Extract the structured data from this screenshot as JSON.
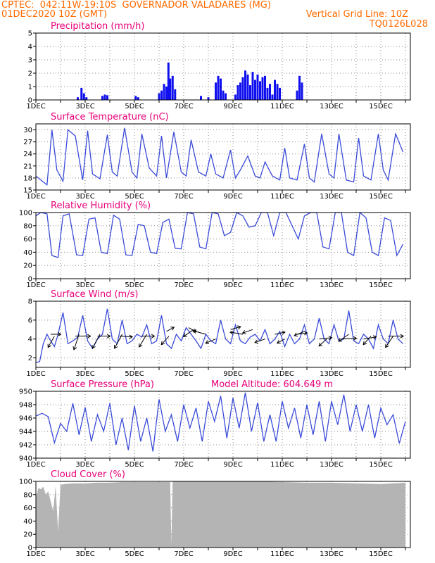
{
  "header": {
    "line1_left": "CPTEC:  042:11W-19:10S  GOVERNADOR VALADARES (MG)",
    "line2_left": "01DEC2020 10Z (GMT)",
    "line2_right": "Vertical Grid Line: 10Z",
    "line3_right": "TQ0126L028"
  },
  "colors": {
    "header": "#ff6a00",
    "panel_title": "#e8007a",
    "precip_bars": "#1010ee",
    "line": "#3a4bd8",
    "cloud_fill": "#b4b4b4",
    "arrows": "#000000"
  },
  "chart_data": [
    {
      "id": "precip",
      "type": "bar",
      "title": "Precipitation (mm/h)",
      "ylim": [
        0,
        5
      ],
      "yticks": [
        0,
        1,
        2,
        3,
        4,
        5
      ],
      "xlabels": [
        "1DEC",
        "3DEC",
        "5DEC",
        "7DEC",
        "9DEC",
        "11DEC",
        "13DEC",
        "15DEC"
      ],
      "x": [
        2.7,
        2.85,
        2.95,
        3.05,
        3.7,
        3.8,
        3.9,
        5.05,
        5.15,
        6.0,
        6.1,
        6.2,
        6.3,
        6.38,
        6.45,
        6.55,
        6.65,
        7.7,
        8.0,
        8.3,
        8.4,
        8.5,
        8.6,
        8.7,
        9.1,
        9.2,
        9.3,
        9.4,
        9.5,
        9.6,
        9.7,
        9.8,
        9.9,
        10.0,
        10.1,
        10.2,
        10.3,
        10.4,
        10.5,
        10.6,
        10.7,
        10.8,
        10.9,
        11.6,
        11.7,
        11.8
      ],
      "values": [
        0.2,
        0.9,
        0.5,
        0.2,
        0.3,
        0.4,
        0.35,
        0.3,
        0.2,
        0.5,
        0.7,
        1.2,
        1.0,
        2.8,
        1.6,
        1.8,
        0.8,
        0.3,
        0.2,
        1.3,
        1.8,
        1.6,
        0.7,
        0.5,
        0.4,
        1.1,
        1.3,
        1.7,
        2.2,
        1.9,
        1.1,
        2.1,
        1.5,
        1.9,
        1.4,
        1.7,
        1.8,
        0.9,
        1.2,
        0.4,
        1.5,
        1.2,
        0.9,
        0.7,
        1.8,
        1.3
      ]
    },
    {
      "id": "temp",
      "type": "line",
      "title": "Surface Temperature (nC)",
      "ylim": [
        15,
        31.5
      ],
      "yticks": [
        15,
        18,
        21,
        24,
        27,
        30
      ],
      "xlabels": [
        "1DEC",
        "3DEC",
        "5DEC",
        "7DEC",
        "9DEC",
        "11DEC",
        "13DEC",
        "15DEC"
      ],
      "x": [
        1.0,
        1.2,
        1.45,
        1.65,
        1.85,
        2.1,
        2.3,
        2.6,
        2.9,
        3.1,
        3.3,
        3.6,
        3.9,
        4.1,
        4.3,
        4.6,
        4.9,
        5.1,
        5.3,
        5.6,
        5.9,
        6.1,
        6.3,
        6.6,
        6.9,
        7.1,
        7.3,
        7.6,
        7.9,
        8.1,
        8.3,
        8.6,
        8.9,
        9.1,
        9.3,
        9.6,
        9.9,
        10.1,
        10.3,
        10.6,
        10.9,
        11.1,
        11.3,
        11.6,
        11.9,
        12.1,
        12.3,
        12.6,
        12.9,
        13.1,
        13.3,
        13.6,
        13.9,
        14.1,
        14.3,
        14.6,
        14.9,
        15.1,
        15.3,
        15.6,
        15.9
      ],
      "values": [
        18.5,
        17.5,
        16.3,
        30.0,
        20.0,
        17.2,
        30.0,
        28.5,
        17.5,
        29.8,
        19.0,
        17.8,
        28.8,
        19.5,
        18.5,
        30.5,
        19.5,
        18.0,
        29.0,
        20.5,
        18.5,
        28.5,
        18.0,
        29.5,
        19.5,
        18.5,
        27.5,
        19.5,
        18.5,
        24.0,
        19.0,
        18.0,
        25.0,
        18.0,
        20.0,
        23.5,
        18.5,
        18.0,
        22.0,
        18.5,
        17.5,
        25.5,
        18.0,
        17.5,
        26.5,
        18.0,
        17.0,
        29.0,
        19.0,
        18.0,
        29.0,
        17.5,
        17.0,
        28.0,
        18.5,
        17.5,
        29.0,
        20.0,
        17.5,
        29.0,
        24.5
      ]
    },
    {
      "id": "rh",
      "type": "line",
      "title": "Relative Humidity (%)",
      "ylim": [
        0,
        100
      ],
      "yticks": [
        0,
        20,
        40,
        60,
        80,
        100
      ],
      "xlabels": [
        "1DEC",
        "3DEC",
        "5DEC",
        "7DEC",
        "9DEC",
        "11DEC",
        "13DEC",
        "15DEC"
      ],
      "x": [
        1.0,
        1.2,
        1.45,
        1.65,
        1.9,
        2.1,
        2.35,
        2.65,
        2.9,
        3.15,
        3.4,
        3.65,
        3.9,
        4.15,
        4.4,
        4.65,
        4.9,
        5.15,
        5.4,
        5.65,
        5.9,
        6.15,
        6.4,
        6.65,
        6.9,
        7.15,
        7.4,
        7.65,
        7.9,
        8.15,
        8.4,
        8.65,
        8.9,
        9.15,
        9.4,
        9.65,
        9.9,
        10.15,
        10.4,
        10.65,
        10.9,
        11.15,
        11.4,
        11.65,
        11.9,
        12.15,
        12.4,
        12.65,
        12.9,
        13.15,
        13.4,
        13.65,
        13.9,
        14.15,
        14.4,
        14.65,
        14.9,
        15.15,
        15.4,
        15.65,
        15.9
      ],
      "values": [
        95,
        100,
        98,
        35,
        32,
        95,
        98,
        36,
        35,
        90,
        92,
        40,
        38,
        96,
        90,
        36,
        35,
        82,
        80,
        40,
        38,
        85,
        90,
        46,
        45,
        100,
        98,
        48,
        45,
        100,
        98,
        65,
        70,
        100,
        95,
        78,
        80,
        100,
        100,
        65,
        100,
        100,
        80,
        60,
        95,
        100,
        100,
        48,
        45,
        100,
        100,
        40,
        35,
        100,
        92,
        40,
        35,
        92,
        88,
        35,
        52
      ]
    },
    {
      "id": "wind",
      "type": "line",
      "title": "Surface Wind (m/s)",
      "ylim": [
        1,
        8
      ],
      "yticks": [
        2,
        4,
        6,
        8
      ],
      "xlabels": [
        "1DEC",
        "3DEC",
        "5DEC",
        "7DEC",
        "9DEC",
        "11DEC",
        "13DEC",
        "15DEC"
      ],
      "x": [
        1.0,
        1.15,
        1.3,
        1.45,
        1.6,
        1.75,
        1.9,
        2.1,
        2.3,
        2.5,
        2.7,
        2.9,
        3.1,
        3.3,
        3.5,
        3.7,
        3.9,
        4.1,
        4.3,
        4.5,
        4.7,
        4.9,
        5.1,
        5.3,
        5.5,
        5.7,
        5.9,
        6.1,
        6.3,
        6.5,
        6.7,
        6.9,
        7.1,
        7.3,
        7.5,
        7.7,
        7.9,
        8.1,
        8.3,
        8.5,
        8.7,
        8.9,
        9.1,
        9.3,
        9.5,
        9.7,
        9.9,
        10.1,
        10.3,
        10.5,
        10.7,
        10.9,
        11.1,
        11.3,
        11.5,
        11.7,
        11.9,
        12.1,
        12.3,
        12.5,
        12.7,
        12.9,
        13.1,
        13.3,
        13.5,
        13.7,
        13.9,
        14.1,
        14.3,
        14.5,
        14.7,
        14.9,
        15.1,
        15.3,
        15.5,
        15.7,
        15.9
      ],
      "values": [
        1.5,
        1.6,
        3.5,
        4.5,
        3.8,
        3.2,
        4.5,
        6.8,
        3.5,
        3.8,
        4.2,
        6.5,
        3.8,
        3.0,
        4.0,
        4.5,
        7.2,
        4.0,
        3.5,
        6.0,
        3.5,
        3.8,
        4.5,
        4.2,
        5.5,
        3.5,
        3.8,
        6.5,
        3.5,
        3.0,
        4.5,
        3.8,
        5.2,
        4.5,
        3.8,
        3.0,
        4.5,
        3.8,
        3.5,
        6.0,
        4.0,
        3.5,
        5.5,
        3.8,
        3.5,
        4.2,
        4.5,
        3.8,
        5.0,
        3.5,
        4.0,
        4.8,
        3.2,
        4.5,
        3.5,
        4.0,
        5.5,
        3.5,
        4.0,
        6.2,
        4.0,
        3.5,
        5.5,
        3.8,
        4.0,
        7.0,
        3.8,
        3.5,
        4.5,
        4.0,
        3.0,
        5.5,
        4.0,
        3.5,
        6.0,
        4.0,
        3.5
      ],
      "vectors": [
        {
          "x": 1.6,
          "y": 4.5,
          "dx": 0.4,
          "dy": 0.0
        },
        {
          "x": 1.75,
          "y": 4.3,
          "dx": -0.25,
          "dy": -1.6
        },
        {
          "x": 2.6,
          "y": 4.3,
          "dx": 0.6,
          "dy": 0.0
        },
        {
          "x": 2.75,
          "y": 4.5,
          "dx": -0.2,
          "dy": -2.2
        },
        {
          "x": 3.5,
          "y": 4.3,
          "dx": 0.5,
          "dy": 0.0
        },
        {
          "x": 3.6,
          "y": 4.5,
          "dx": -0.3,
          "dy": -2.0
        },
        {
          "x": 4.4,
          "y": 4.3,
          "dx": 0.5,
          "dy": -0.1
        },
        {
          "x": 4.5,
          "y": 4.5,
          "dx": -0.3,
          "dy": -2.0
        },
        {
          "x": 5.3,
          "y": 4.3,
          "dx": 0.5,
          "dy": 0.0
        },
        {
          "x": 5.5,
          "y": 4.5,
          "dx": -0.3,
          "dy": -1.8
        },
        {
          "x": 6.3,
          "y": 4.8,
          "dx": 0.3,
          "dy": 0.6
        },
        {
          "x": 6.4,
          "y": 4.3,
          "dx": -0.3,
          "dy": -1.2
        },
        {
          "x": 7.2,
          "y": 5.2,
          "dx": 0.3,
          "dy": -0.6
        },
        {
          "x": 7.4,
          "y": 5.0,
          "dx": -0.4,
          "dy": -1.0
        },
        {
          "x": 7.9,
          "y": 4.5,
          "dx": -0.5,
          "dy": 0.5
        },
        {
          "x": 8.3,
          "y": 4.0,
          "dx": -0.4,
          "dy": -0.6
        },
        {
          "x": 8.9,
          "y": 5.0,
          "dx": 0.4,
          "dy": 0.4
        },
        {
          "x": 9.4,
          "y": 4.5,
          "dx": -0.5,
          "dy": 0.3
        },
        {
          "x": 9.8,
          "y": 5.0,
          "dx": -0.4,
          "dy": -0.5
        },
        {
          "x": 10.3,
          "y": 4.0,
          "dx": -0.4,
          "dy": -0.5
        },
        {
          "x": 10.7,
          "y": 4.5,
          "dx": 0.4,
          "dy": 0.3
        },
        {
          "x": 11.1,
          "y": 4.0,
          "dx": -0.3,
          "dy": -0.6
        },
        {
          "x": 11.6,
          "y": 4.5,
          "dx": 0.4,
          "dy": 0.2
        },
        {
          "x": 11.9,
          "y": 4.8,
          "dx": -0.4,
          "dy": -0.6
        },
        {
          "x": 12.5,
          "y": 4.0,
          "dx": 0.5,
          "dy": 0.2
        },
        {
          "x": 12.8,
          "y": 4.0,
          "dx": -0.3,
          "dy": -1.0
        },
        {
          "x": 13.4,
          "y": 4.0,
          "dx": 0.6,
          "dy": 0.1
        },
        {
          "x": 13.7,
          "y": 4.5,
          "dx": -0.4,
          "dy": -1.0
        },
        {
          "x": 14.3,
          "y": 4.0,
          "dx": 0.5,
          "dy": 0.3
        },
        {
          "x": 14.6,
          "y": 4.3,
          "dx": -0.3,
          "dy": -1.2
        },
        {
          "x": 15.3,
          "y": 4.3,
          "dx": 0.6,
          "dy": 0.0
        },
        {
          "x": 15.5,
          "y": 4.3,
          "dx": -0.3,
          "dy": -1.6
        }
      ]
    },
    {
      "id": "pressure",
      "type": "line",
      "title": "Surface Pressure (hPa)",
      "subtitle": "Model Altitude: 604.649  m",
      "ylim": [
        940,
        950
      ],
      "yticks": [
        940,
        942,
        944,
        946,
        948,
        950
      ],
      "xlabels": [
        "1DEC",
        "3DEC",
        "5DEC",
        "7DEC",
        "9DEC",
        "11DEC",
        "13DEC",
        "15DEC"
      ],
      "x": [
        1.0,
        1.25,
        1.5,
        1.75,
        2.0,
        2.25,
        2.5,
        2.75,
        3.0,
        3.25,
        3.5,
        3.75,
        4.0,
        4.25,
        4.5,
        4.75,
        5.0,
        5.25,
        5.5,
        5.75,
        6.0,
        6.25,
        6.5,
        6.75,
        7.0,
        7.25,
        7.5,
        7.75,
        8.0,
        8.25,
        8.5,
        8.75,
        9.0,
        9.25,
        9.5,
        9.75,
        10.0,
        10.25,
        10.5,
        10.75,
        11.0,
        11.25,
        11.5,
        11.75,
        12.0,
        12.25,
        12.5,
        12.75,
        13.0,
        13.25,
        13.5,
        13.75,
        14.0,
        14.25,
        14.5,
        14.75,
        15.0,
        15.25,
        15.5,
        15.75,
        16.0
      ],
      "values": [
        946.3,
        946.7,
        946.2,
        942.3,
        945.2,
        944.0,
        948.2,
        943.5,
        947.6,
        942.5,
        946.5,
        944.0,
        948.2,
        942.0,
        946.0,
        941.2,
        947.8,
        942.5,
        946.0,
        941.0,
        948.8,
        944.0,
        946.5,
        942.5,
        948.0,
        944.5,
        947.5,
        942.5,
        948.5,
        945.5,
        949.3,
        943.0,
        949.0,
        944.5,
        949.8,
        944.0,
        948.3,
        942.5,
        946.5,
        942.5,
        948.5,
        944.5,
        947.5,
        943.0,
        948.0,
        943.5,
        948.5,
        942.5,
        948.5,
        945.0,
        949.5,
        944.0,
        948.0,
        944.0,
        948.0,
        943.0,
        947.5,
        945.0,
        946.5,
        942.2,
        945.5
      ]
    },
    {
      "id": "cloud",
      "type": "area",
      "title": "Cloud Cover (%)",
      "ylim": [
        0,
        100
      ],
      "yticks": [
        0,
        20,
        40,
        60,
        80,
        100
      ],
      "xlabels": [
        "1DEC",
        "3DEC",
        "5DEC",
        "7DEC",
        "9DEC",
        "11DEC",
        "13DEC",
        "15DEC"
      ],
      "x": [
        1.0,
        1.1,
        1.2,
        1.3,
        1.4,
        1.5,
        1.6,
        1.7,
        1.8,
        1.9,
        2.0,
        2.2,
        2.5,
        3.0,
        3.5,
        4.0,
        4.5,
        5.0,
        5.5,
        6.0,
        6.45,
        6.5,
        6.55,
        7.0,
        8.0,
        9.0,
        10.0,
        11.0,
        12.0,
        13.0,
        14.0,
        15.0,
        15.5,
        16.0
      ],
      "values": [
        75,
        90,
        88,
        92,
        80,
        85,
        70,
        55,
        93,
        25,
        95,
        96,
        97,
        97,
        98,
        98,
        99,
        99,
        99,
        99,
        99,
        5,
        100,
        100,
        100,
        100,
        100,
        99,
        98,
        98,
        97,
        96,
        97,
        98
      ]
    }
  ]
}
